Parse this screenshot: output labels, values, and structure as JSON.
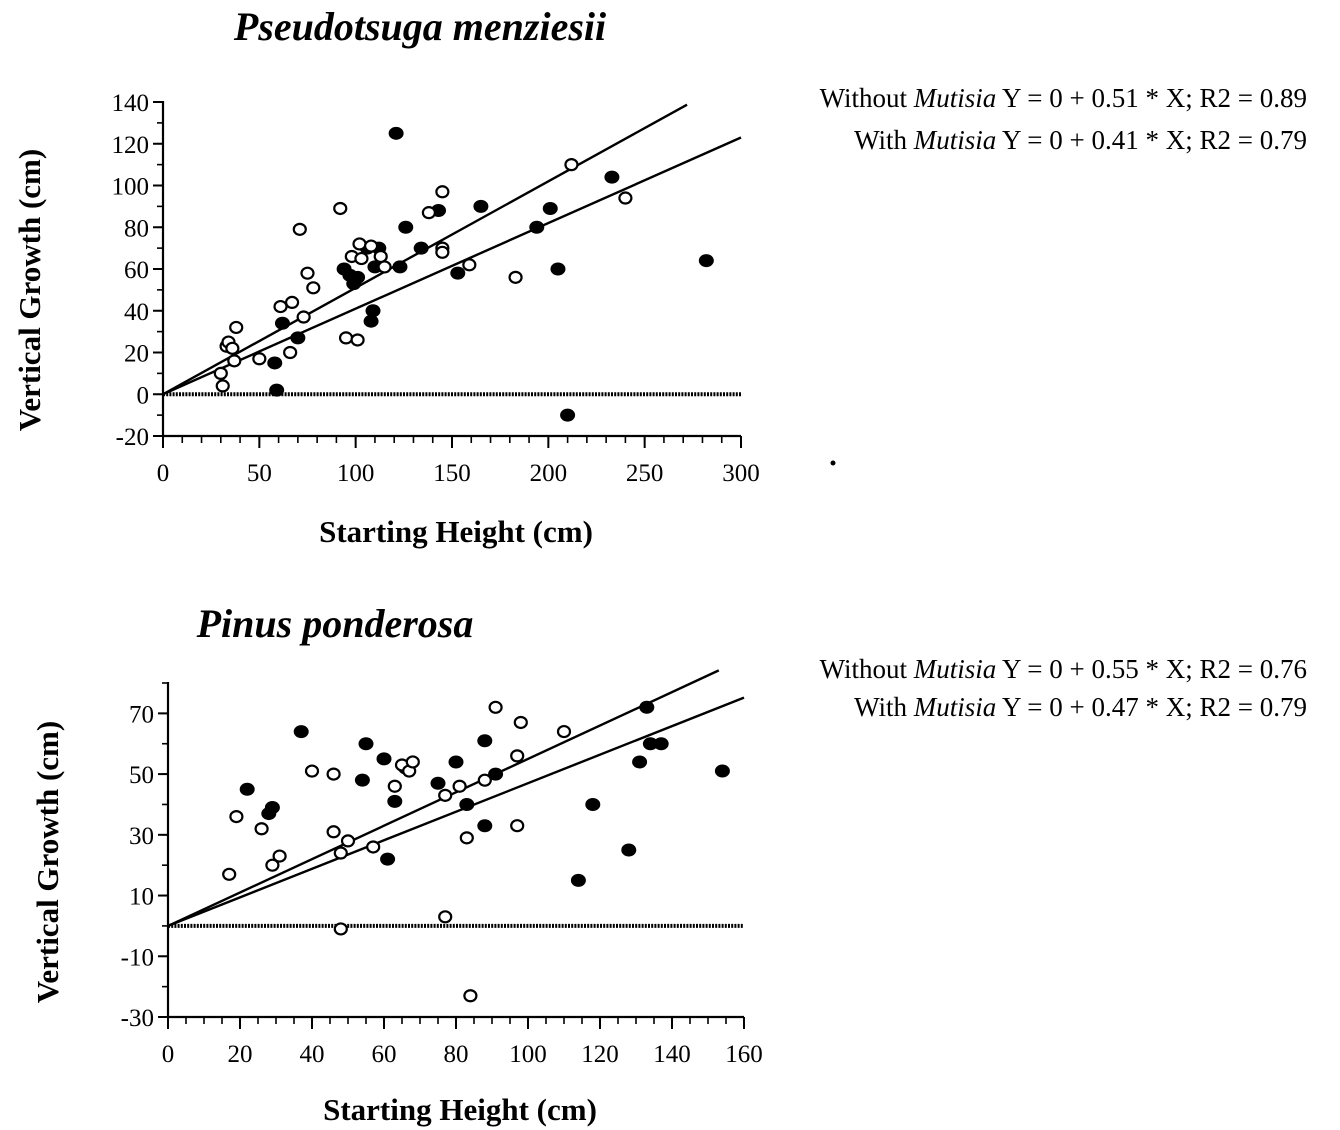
{
  "chart_data": [
    {
      "type": "scatter",
      "title": "Pseudotsuga menziesii",
      "xlabel": "Starting Height (cm)",
      "ylabel": "Vertical Growth (cm)",
      "xlim": [
        0,
        300
      ],
      "ylim": [
        -20,
        140
      ],
      "x_ticks": [
        "0",
        "50",
        "100",
        "150",
        "200",
        "250",
        "300"
      ],
      "y_ticks": [
        "140",
        "120",
        "100",
        "80",
        "60",
        "40",
        "20",
        "0",
        "-20"
      ],
      "zero_line": 0,
      "regression_lines": [
        {
          "label_prefix": "Without ",
          "label_italic": "Mutisia",
          "label_equation": " Y = 0 + 0.51 * X; R2 = 0.89",
          "intercept": 0,
          "slope": 0.51,
          "r2": 0.89,
          "x_end": 272
        },
        {
          "label_prefix": "With ",
          "label_italic": "Mutisia",
          "label_equation": " Y = 0 + 0.41 * X; R2 = 0.79",
          "intercept": 0,
          "slope": 0.41,
          "r2": 0.79,
          "x_end": 300
        }
      ],
      "series": [
        {
          "marker": "filled",
          "points": [
            [
              58,
              15
            ],
            [
              59,
              2
            ],
            [
              62,
              34
            ],
            [
              70,
              27
            ],
            [
              94,
              60
            ],
            [
              97,
              57
            ],
            [
              99,
              53
            ],
            [
              101,
              56
            ],
            [
              106,
              70
            ],
            [
              108,
              35
            ],
            [
              109,
              40
            ],
            [
              110,
              61
            ],
            [
              112,
              70
            ],
            [
              121,
              125
            ],
            [
              123,
              61
            ],
            [
              126,
              80
            ],
            [
              134,
              70
            ],
            [
              143,
              88
            ],
            [
              153,
              58
            ],
            [
              165,
              90
            ],
            [
              194,
              80
            ],
            [
              201,
              89
            ],
            [
              205,
              60
            ],
            [
              210,
              -10
            ],
            [
              233,
              104
            ],
            [
              282,
              64
            ]
          ]
        },
        {
          "marker": "open",
          "points": [
            [
              30,
              10
            ],
            [
              31,
              4
            ],
            [
              33,
              23
            ],
            [
              34,
              25
            ],
            [
              36,
              22
            ],
            [
              37,
              16
            ],
            [
              38,
              32
            ],
            [
              50,
              17
            ],
            [
              61,
              42
            ],
            [
              66,
              20
            ],
            [
              67,
              44
            ],
            [
              71,
              79
            ],
            [
              73,
              37
            ],
            [
              75,
              58
            ],
            [
              78,
              51
            ],
            [
              92,
              89
            ],
            [
              95,
              27
            ],
            [
              98,
              66
            ],
            [
              101,
              26
            ],
            [
              102,
              72
            ],
            [
              103,
              65
            ],
            [
              108,
              71
            ],
            [
              113,
              66
            ],
            [
              115,
              61
            ],
            [
              138,
              87
            ],
            [
              145,
              97
            ],
            [
              145,
              70
            ],
            [
              145,
              68
            ],
            [
              159,
              62
            ],
            [
              183,
              56
            ],
            [
              212,
              110
            ],
            [
              240,
              94
            ]
          ]
        }
      ]
    },
    {
      "type": "scatter",
      "title": "Pinus ponderosa",
      "xlabel": "Starting Height (cm)",
      "ylabel": "Vertical Growth (cm)",
      "xlim": [
        0,
        160
      ],
      "ylim": [
        -30,
        80
      ],
      "x_ticks": [
        "0",
        "20",
        "40",
        "60",
        "80",
        "100",
        "120",
        "140",
        "160"
      ],
      "y_ticks": [
        "70",
        "50",
        "30",
        "10",
        "-10",
        "-30"
      ],
      "zero_line": 0,
      "regression_lines": [
        {
          "label_prefix": "Without ",
          "label_italic": "Mutisia",
          "label_equation": " Y = 0 + 0.55 * X; R2 = 0.76",
          "intercept": 0,
          "slope": 0.55,
          "r2": 0.76,
          "x_end": 153
        },
        {
          "label_prefix": "With ",
          "label_italic": "Mutisia",
          "label_equation": " Y = 0 + 0.47 * X; R2 = 0.79",
          "intercept": 0,
          "slope": 0.47,
          "r2": 0.79,
          "x_end": 160
        }
      ],
      "series": [
        {
          "marker": "filled",
          "points": [
            [
              22,
              45
            ],
            [
              28,
              37
            ],
            [
              29,
              39
            ],
            [
              37,
              64
            ],
            [
              54,
              48
            ],
            [
              55,
              60
            ],
            [
              60,
              55
            ],
            [
              61,
              22
            ],
            [
              63,
              41
            ],
            [
              66,
              52
            ],
            [
              75,
              47
            ],
            [
              80,
              54
            ],
            [
              83,
              40
            ],
            [
              88,
              33
            ],
            [
              88,
              61
            ],
            [
              91,
              50
            ],
            [
              114,
              15
            ],
            [
              118,
              40
            ],
            [
              128,
              25
            ],
            [
              131,
              54
            ],
            [
              133,
              72
            ],
            [
              134,
              60
            ],
            [
              137,
              60
            ],
            [
              154,
              51
            ]
          ]
        },
        {
          "marker": "open",
          "points": [
            [
              17,
              17
            ],
            [
              19,
              36
            ],
            [
              26,
              32
            ],
            [
              29,
              20
            ],
            [
              31,
              23
            ],
            [
              40,
              51
            ],
            [
              46,
              31
            ],
            [
              46,
              50
            ],
            [
              48,
              -1
            ],
            [
              48,
              24
            ],
            [
              50,
              28
            ],
            [
              57,
              26
            ],
            [
              63,
              46
            ],
            [
              65,
              53
            ],
            [
              67,
              51
            ],
            [
              68,
              54
            ],
            [
              77,
              43
            ],
            [
              77,
              3
            ],
            [
              81,
              46
            ],
            [
              83,
              29
            ],
            [
              84,
              -23
            ],
            [
              88,
              48
            ],
            [
              91,
              72
            ],
            [
              97,
              56
            ],
            [
              97,
              33
            ],
            [
              98,
              67
            ],
            [
              110,
              64
            ]
          ]
        }
      ]
    }
  ]
}
